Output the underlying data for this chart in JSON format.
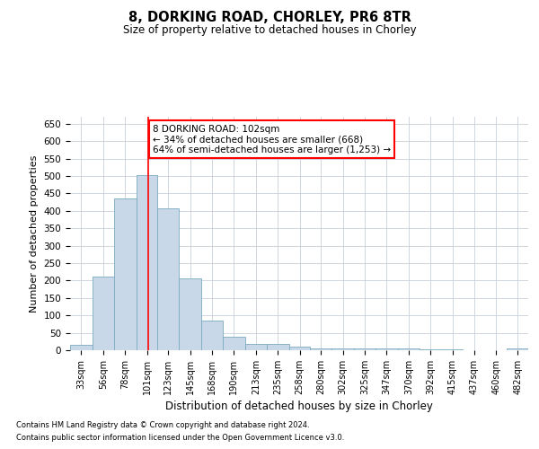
{
  "title_line1": "8, DORKING ROAD, CHORLEY, PR6 8TR",
  "title_line2": "Size of property relative to detached houses in Chorley",
  "xlabel": "Distribution of detached houses by size in Chorley",
  "ylabel": "Number of detached properties",
  "footer_line1": "Contains HM Land Registry data © Crown copyright and database right 2024.",
  "footer_line2": "Contains public sector information licensed under the Open Government Licence v3.0.",
  "annotation_line1": "8 DORKING ROAD: 102sqm",
  "annotation_line2": "← 34% of detached houses are smaller (668)",
  "annotation_line3": "64% of semi-detached houses are larger (1,253) →",
  "bar_color": "#c8d8e8",
  "bar_edge_color": "#7aaabf",
  "vline_color": "red",
  "vline_x": 102,
  "categories": [
    "33sqm",
    "56sqm",
    "78sqm",
    "101sqm",
    "123sqm",
    "145sqm",
    "168sqm",
    "190sqm",
    "213sqm",
    "235sqm",
    "258sqm",
    "280sqm",
    "302sqm",
    "325sqm",
    "347sqm",
    "370sqm",
    "392sqm",
    "415sqm",
    "437sqm",
    "460sqm",
    "482sqm"
  ],
  "bin_edges": [
    22,
    45,
    67,
    90,
    112,
    134,
    157,
    179,
    202,
    224,
    247,
    269,
    291,
    314,
    336,
    359,
    381,
    404,
    426,
    449,
    471,
    493
  ],
  "values": [
    15,
    212,
    435,
    502,
    407,
    207,
    85,
    38,
    18,
    18,
    10,
    5,
    5,
    5,
    5,
    5,
    2,
    2,
    1,
    1,
    5
  ],
  "ylim": [
    0,
    670
  ],
  "yticks": [
    0,
    50,
    100,
    150,
    200,
    250,
    300,
    350,
    400,
    450,
    500,
    550,
    600,
    650
  ],
  "background_color": "#ffffff",
  "grid_color": "#c8d0d8",
  "ann_box_color": "white",
  "ann_box_edge": "red"
}
